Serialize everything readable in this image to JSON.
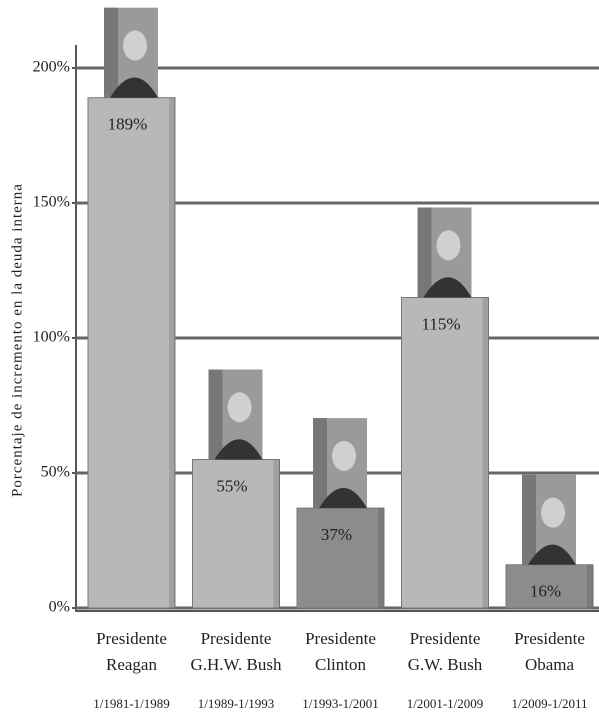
{
  "chart_data": {
    "type": "bar",
    "y_axis_label": "Porcentaje de incremento en la deuda interna",
    "categories": [
      "Presidente Reagan",
      "Presidente G.H.W. Bush",
      "Presidente Clinton",
      "Presidente G.W. Bush",
      "Presidente Obama"
    ],
    "periods": [
      "1/1981-1/1989",
      "1/1989-1/1993",
      "1/1993-1/2001",
      "1/2001-1/2009",
      "1/2009-1/2011"
    ],
    "values": [
      189,
      55,
      37,
      115,
      16
    ],
    "value_labels": [
      "189%",
      "55%",
      "37%",
      "115%",
      "16%"
    ],
    "colors": [
      "#b8b8b8",
      "#b8b8b8",
      "#8c8c8c",
      "#b8b8b8",
      "#8c8c8c"
    ],
    "ylim": [
      0,
      200
    ],
    "yticks": [
      {
        "value": 0,
        "label": "0%"
      },
      {
        "value": 50,
        "label": "50%"
      },
      {
        "value": 100,
        "label": "100%"
      },
      {
        "value": 150,
        "label": "150%"
      },
      {
        "value": 200,
        "label": "200%"
      }
    ],
    "grid": true
  }
}
